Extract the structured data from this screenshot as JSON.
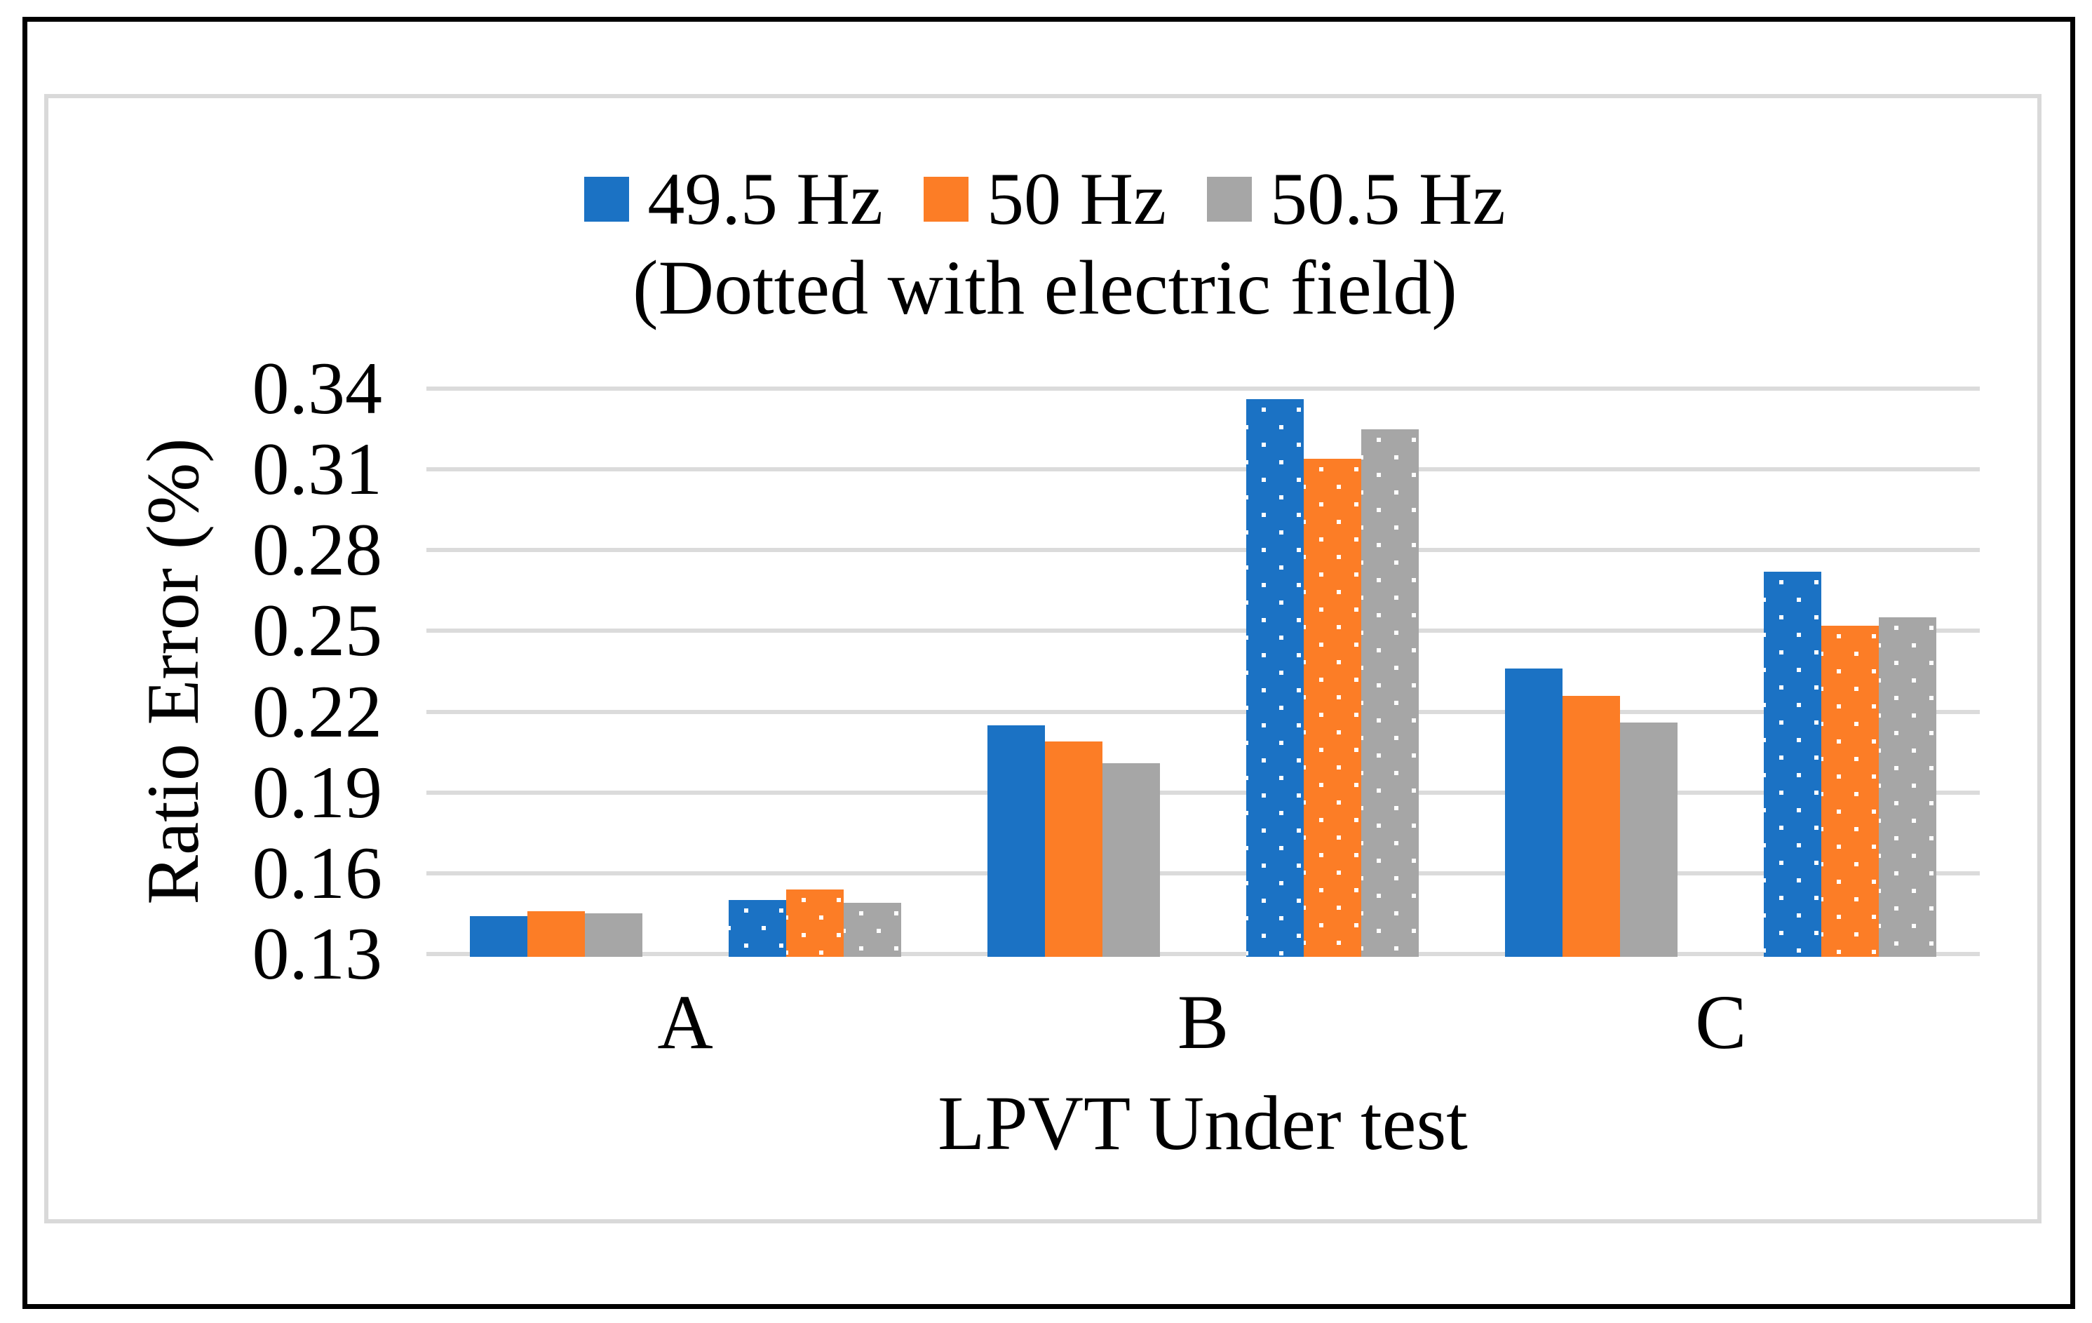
{
  "figure": {
    "border_color": "#000000",
    "frame_color": "#D9D9D9",
    "background": "#FFFFFF"
  },
  "chart_data": {
    "type": "bar",
    "title": "",
    "xlabel": "LPVT Under test",
    "ylabel": "Ratio Error (%)",
    "categories": [
      "A",
      "B",
      "C"
    ],
    "ylim": [
      0.13,
      0.34
    ],
    "ytick_step": 0.03,
    "ytick_labels": [
      "0.13",
      "0.16",
      "0.19",
      "0.22",
      "0.25",
      "0.28",
      "0.31",
      "0.34"
    ],
    "grid": true,
    "gridline_color": "#DBDBDB",
    "legend_position": "top-center",
    "legend_note": "(Dotted with electric field)",
    "subgroups": [
      {
        "style": "solid",
        "meaning": "without electric field"
      },
      {
        "style": "dotted",
        "meaning": "with electric field"
      }
    ],
    "series": [
      {
        "name": "49.5 Hz",
        "color": "#1B72C4",
        "solid": [
          0.144,
          0.215,
          0.236
        ],
        "dotted": [
          0.15,
          0.336,
          0.272
        ]
      },
      {
        "name": "50 Hz",
        "color": "#FC7D26",
        "solid": [
          0.146,
          0.209,
          0.226
        ],
        "dotted": [
          0.154,
          0.314,
          0.252
        ]
      },
      {
        "name": "50.5 Hz",
        "color": "#A6A6A6",
        "solid": [
          0.145,
          0.201,
          0.216
        ],
        "dotted": [
          0.149,
          0.325,
          0.255
        ]
      }
    ]
  }
}
